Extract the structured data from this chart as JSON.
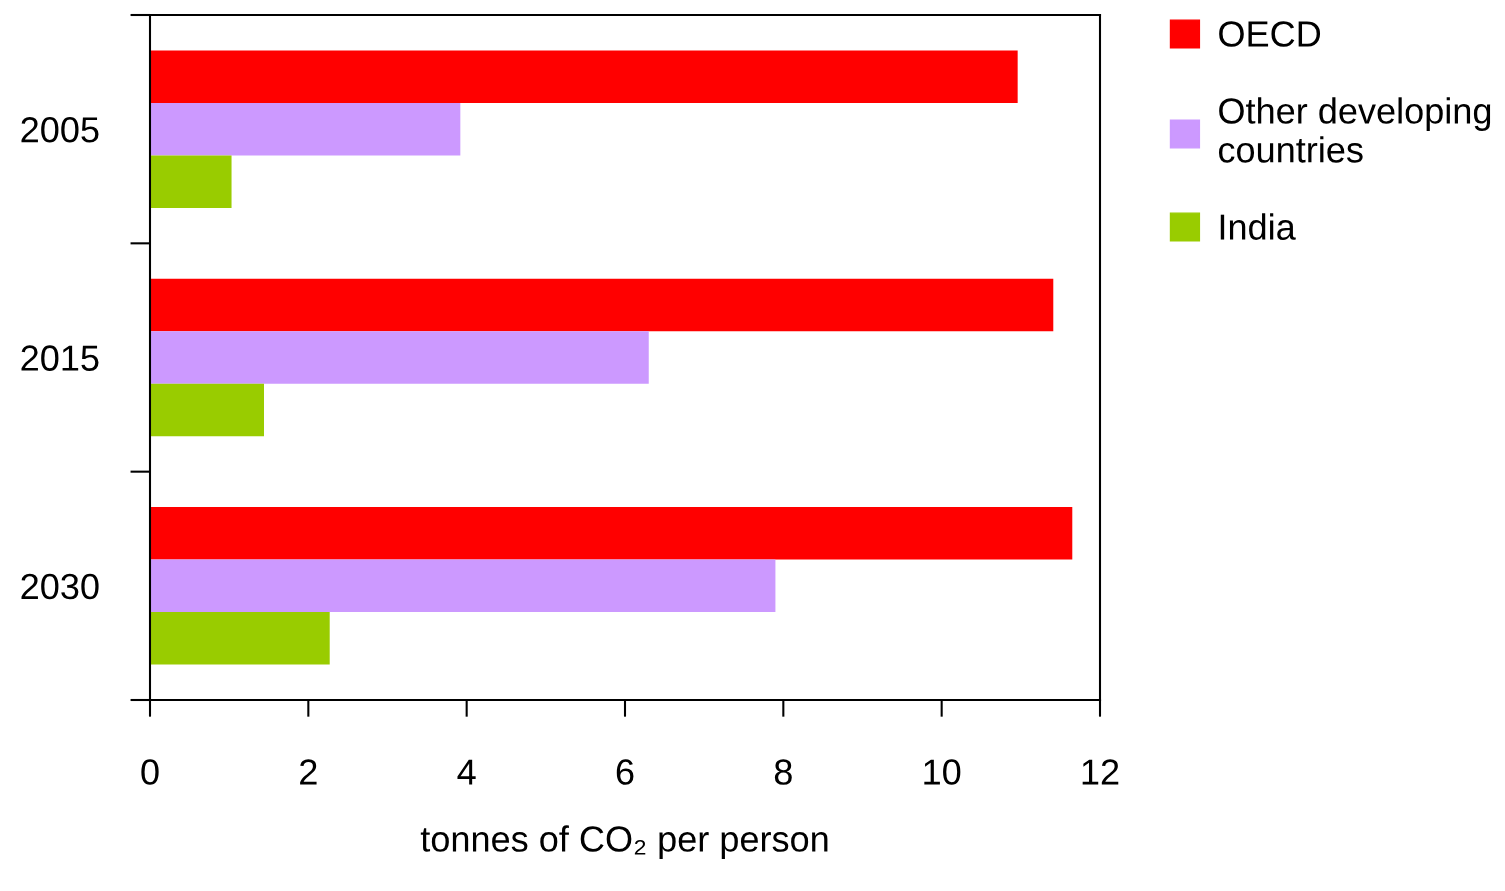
{
  "chart_data": {
    "type": "bar",
    "orientation": "horizontal",
    "xlabel": "tonnes of CO₂ per person",
    "categories": [
      "2005",
      "2015",
      "2030"
    ],
    "series": [
      {
        "name": "OECD",
        "color": "#ff0000",
        "values": [
          10.96,
          11.41,
          11.65
        ]
      },
      {
        "name": "Other developing countries",
        "color": "#cc99ff",
        "values": [
          3.92,
          6.3,
          7.9
        ]
      },
      {
        "name": "India",
        "color": "#99cc00",
        "values": [
          1.03,
          1.44,
          2.27
        ]
      }
    ],
    "xlim": [
      0,
      12
    ],
    "xticks": [
      0,
      2,
      4,
      6,
      8,
      10,
      12
    ],
    "grid": false,
    "legend": "top right"
  }
}
